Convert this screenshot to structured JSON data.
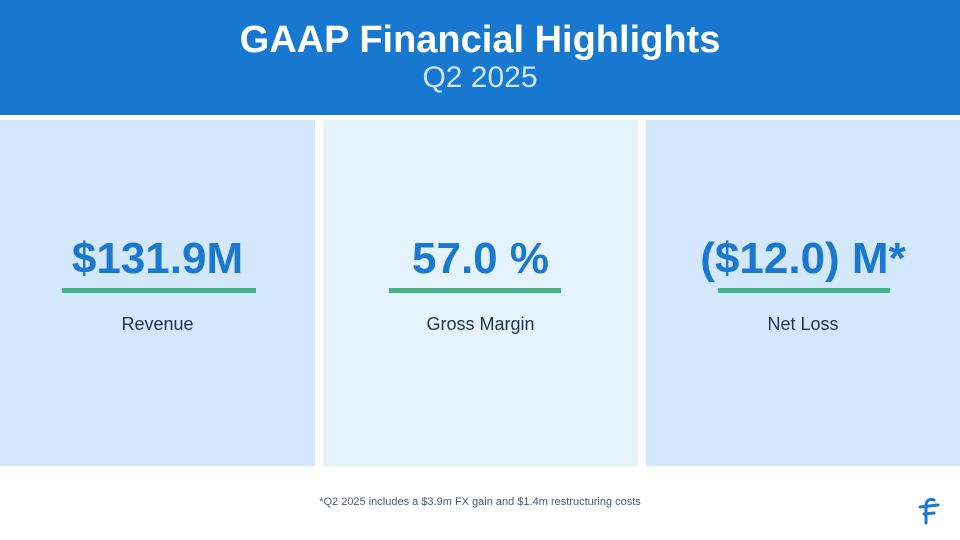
{
  "header": {
    "title": "GAAP Financial Highlights",
    "subtitle": "Q2 2025"
  },
  "metrics": [
    {
      "value": "$131.9M",
      "label": "Revenue"
    },
    {
      "value": "57.0 %",
      "label": "Gross Margin"
    },
    {
      "value": "($12.0) M*",
      "label": "Net Loss"
    }
  ],
  "footnote": "*Q2 2025 includes a $3.9m FX gain and $1.4m restructuring costs",
  "logo": {
    "icon": "brand-logo-icon"
  },
  "colors": {
    "header_bg": "#1878d0",
    "panel_bg": "#d3e8fc",
    "panel_bg_alt": "#e4f3fc",
    "value_text": "#1b78cf",
    "accent_line": "#43b387",
    "label_text": "#1d3450"
  }
}
